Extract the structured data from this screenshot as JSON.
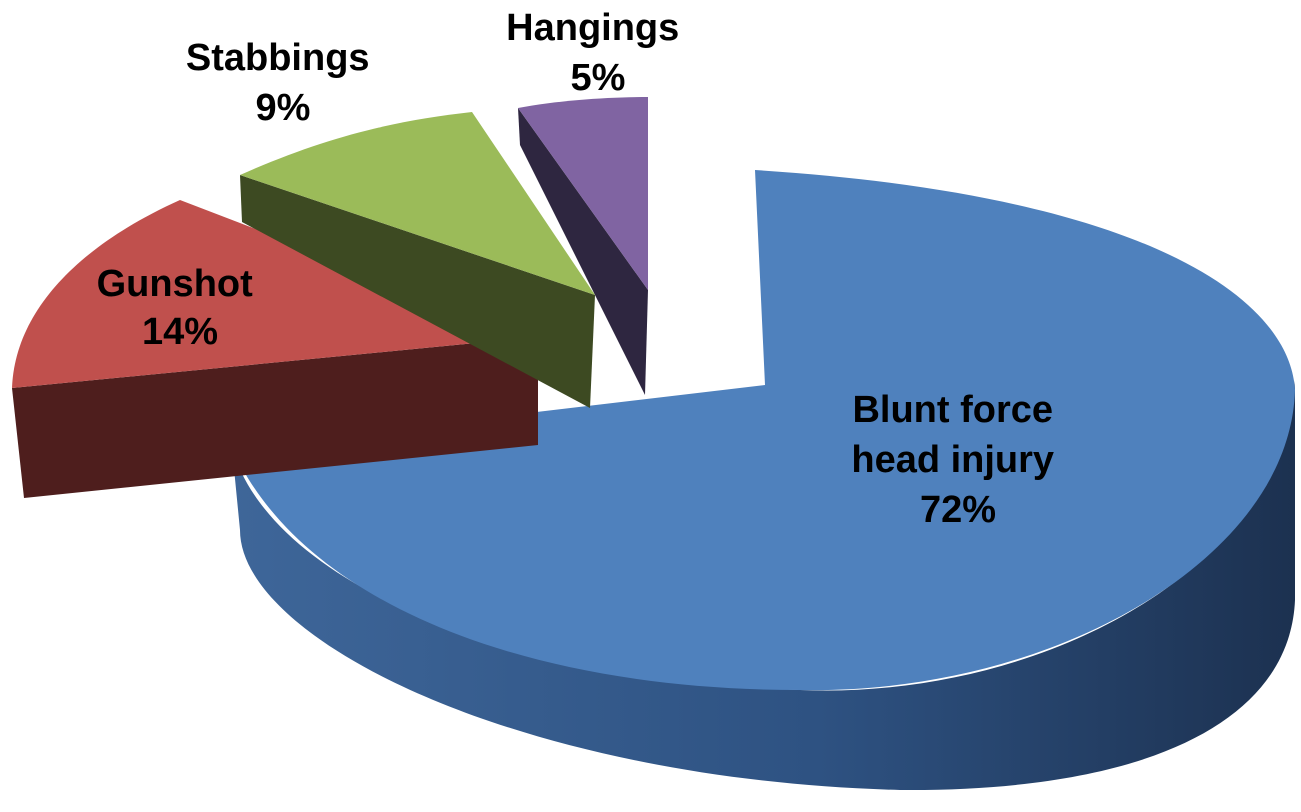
{
  "chart_data": {
    "type": "pie",
    "style": "3d-exploded",
    "slices": [
      {
        "label": "Blunt force head injury",
        "label_lines": [
          "Blunt force",
          "head injury"
        ],
        "percent_label": "72%",
        "value": 72,
        "color": "#4F81BD",
        "side_color": "#2A4A74"
      },
      {
        "label": "Gunshot",
        "label_lines": [
          "Gunshot"
        ],
        "percent_label": "14%",
        "value": 14,
        "color": "#C0504D",
        "side_color": "#4E1E1D"
      },
      {
        "label": "Stabbings",
        "label_lines": [
          "Stabbings"
        ],
        "percent_label": "9%",
        "value": 9,
        "color": "#9BBB59",
        "side_color": "#3D4A22"
      },
      {
        "label": "Hangings",
        "label_lines": [
          "Hangings"
        ],
        "percent_label": "5%",
        "value": 5,
        "color": "#8064A2",
        "side_color": "#2E2640"
      }
    ]
  }
}
